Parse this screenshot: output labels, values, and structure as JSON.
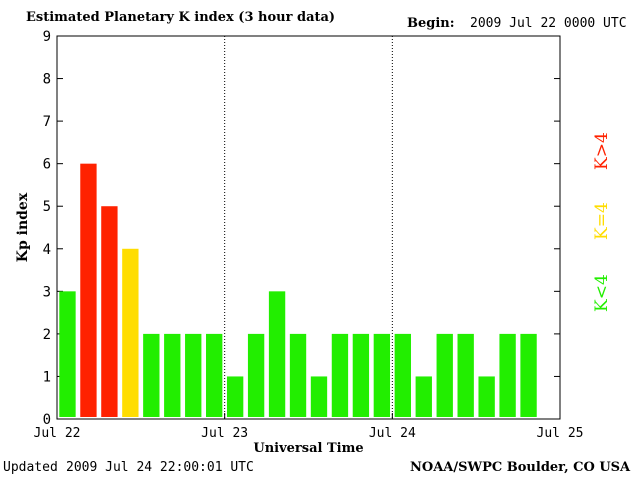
{
  "header": {
    "title": "Estimated Planetary K index (3 hour data)",
    "begin_label": "Begin:",
    "begin_value": "2009 Jul 22 0000 UTC"
  },
  "footer": {
    "updated_label": "Updated",
    "updated_value": "2009 Jul 24 22:00:01 UTC",
    "source": "NOAA/SWPC Boulder, CO USA"
  },
  "legend": {
    "high": {
      "label": "K>4",
      "color": "#ff2200"
    },
    "equal": {
      "label": "K=4",
      "color": "#ffdd00"
    },
    "low": {
      "label": "K<4",
      "color": "#22ee00"
    }
  },
  "chart_data": {
    "type": "bar",
    "title": "Estimated Planetary K index (3 hour data)",
    "xlabel": "Universal Time",
    "ylabel": "Kp index",
    "ylim": [
      0,
      9
    ],
    "yticks": [
      0,
      1,
      2,
      3,
      4,
      5,
      6,
      7,
      8,
      9
    ],
    "x_tick_labels": [
      "Jul 22",
      "Jul 23",
      "Jul 24",
      "Jul 25"
    ],
    "day_dividers": [
      "Jul 23",
      "Jul 24"
    ],
    "interval_hours": 3,
    "series": [
      {
        "values": [
          3,
          6,
          5,
          4,
          2,
          2,
          2,
          2,
          1,
          2,
          3,
          2,
          1,
          2,
          2,
          2,
          2,
          1,
          2,
          2,
          1,
          2,
          2
        ]
      }
    ]
  }
}
